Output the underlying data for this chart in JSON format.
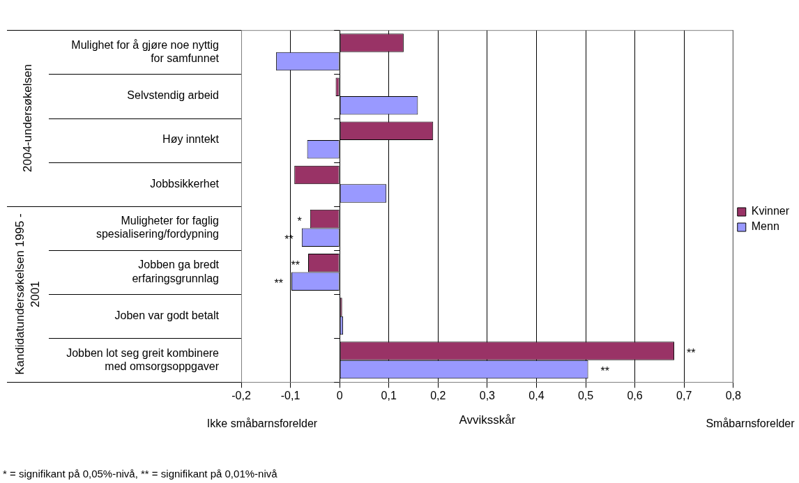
{
  "chart_data": {
    "type": "bar",
    "orientation": "horizontal",
    "xlabel": "Avviksskår",
    "categories": [
      "Mulighet for å gjøre noe nyttig for samfunnet",
      "Selvstendig arbeid",
      "Høy inntekt",
      "Jobbsikkerhet",
      "Muligheter for faglig spesialisering/fordypning",
      "Jobben ga bredt erfaringsgrunnlag",
      "Joben var godt betalt",
      "Jobben lot seg greit kombinere med omsorgsoppgaver"
    ],
    "series": [
      {
        "name": "Kvinner",
        "color": "#993366",
        "values": [
          0.13,
          -0.008,
          0.19,
          -0.092,
          -0.06,
          -0.064,
          0.005,
          0.68
        ]
      },
      {
        "name": "Menn",
        "color": "#9999ff",
        "values": [
          -0.129,
          0.159,
          -0.066,
          0.095,
          -0.077,
          -0.098,
          0.007,
          0.505
        ]
      }
    ],
    "xlim": [
      -0.2,
      0.8
    ],
    "xticks": [
      {
        "value": -0.2,
        "label": "-0,2"
      },
      {
        "value": -0.1,
        "label": "-0,1"
      },
      0,
      {
        "value": 0.1,
        "label": "0,1"
      },
      {
        "value": 0.2,
        "label": "0,2"
      },
      {
        "value": 0.3,
        "label": "0,3"
      },
      {
        "value": 0.4,
        "label": "0,4"
      },
      {
        "value": 0.5,
        "label": "0,5"
      },
      {
        "value": 0.6,
        "label": "0,6"
      },
      {
        "value": 0.7,
        "label": "0,7"
      },
      {
        "value": 0.8,
        "label": "0,8"
      }
    ],
    "grid": "x",
    "legend": "right",
    "annotations": [
      "2004-undersøkelsen",
      "Kandidatundersøkelsen 1995 - 2001",
      "Ikke småbarnsforelder",
      "Småbarnsforelder",
      "* = signifikant på 0,05%-nivå, ** = signifikant på 0,01%-nivå",
      {
        "text": "*",
        "x": -0.06,
        "y": "Muligheter for faglig spesialisering/fordypning"
      },
      {
        "text": "**",
        "x": -0.077,
        "y": "Muligheter for faglig spesialisering/fordypning"
      },
      {
        "text": "**",
        "x": -0.064,
        "y": "Jobben ga bredt erfaringsgrunnlag"
      },
      {
        "text": "**",
        "x": -0.098,
        "y": "Jobben ga bredt erfaringsgrunnlag"
      },
      {
        "text": "**",
        "x": 0.68,
        "y": "Jobben lot seg greit kombinere med omsorgsoppgaver"
      },
      {
        "text": "**",
        "x": 0.505,
        "y": "Jobben lot seg greit kombinere med omsorgsoppgaver"
      }
    ]
  }
}
